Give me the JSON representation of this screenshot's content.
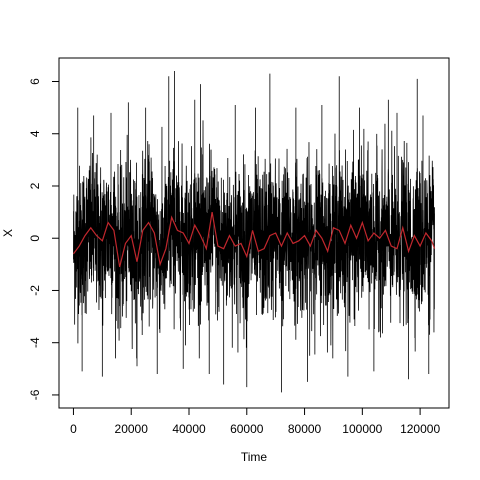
{
  "chart_data": {
    "type": "line",
    "title": "",
    "xlabel": "Time",
    "ylabel": "X",
    "xlim": [
      -5000,
      130000
    ],
    "ylim": [
      -6.5,
      6.9
    ],
    "x_ticks": [
      0,
      20000,
      40000,
      60000,
      80000,
      100000,
      120000
    ],
    "x_tick_labels": [
      "0",
      "20000",
      "40000",
      "60000",
      "80000",
      "100000",
      "120000"
    ],
    "y_ticks": [
      -6,
      -4,
      -2,
      0,
      2,
      4,
      6
    ],
    "y_tick_labels": [
      "-6",
      "-4",
      "-2",
      "0",
      "2",
      "4",
      "6"
    ],
    "grid": false,
    "legend": "none",
    "series": [
      {
        "color": "#000000",
        "x_range": [
          0,
          125000
        ],
        "description_values": {
          "typical_band": [
            -2.5,
            2.5
          ],
          "max": 6.4,
          "min": -5.9
        },
        "spikes": [
          [
            1500,
            5.0
          ],
          [
            3000,
            -5.1
          ],
          [
            7000,
            4.7
          ],
          [
            10000,
            -5.3
          ],
          [
            13000,
            4.8
          ],
          [
            19000,
            5.2
          ],
          [
            22000,
            -4.9
          ],
          [
            25000,
            5.0
          ],
          [
            29000,
            -5.2
          ],
          [
            33000,
            6.2
          ],
          [
            35000,
            6.4
          ],
          [
            38000,
            -5.0
          ],
          [
            42000,
            5.3
          ],
          [
            44000,
            5.9
          ],
          [
            47000,
            -5.2
          ],
          [
            52000,
            -5.6
          ],
          [
            56000,
            5.1
          ],
          [
            60000,
            -5.7
          ],
          [
            63000,
            5.0
          ],
          [
            68000,
            6.3
          ],
          [
            72000,
            -5.9
          ],
          [
            77000,
            5.0
          ],
          [
            81000,
            -5.5
          ],
          [
            86000,
            5.1
          ],
          [
            92000,
            6.2
          ],
          [
            95000,
            -5.3
          ],
          [
            99000,
            5.0
          ],
          [
            104000,
            -5.1
          ],
          [
            109000,
            5.3
          ],
          [
            112000,
            4.8
          ],
          [
            116000,
            -5.4
          ],
          [
            119000,
            6.1
          ],
          [
            121000,
            4.7
          ],
          [
            123000,
            -5.2
          ]
        ]
      },
      {
        "color": "#c1272d",
        "x": [
          0,
          2000,
          4000,
          6000,
          8000,
          10000,
          12000,
          14000,
          16000,
          18000,
          20000,
          22000,
          24000,
          26000,
          28000,
          30000,
          32000,
          34000,
          36000,
          38000,
          40000,
          42000,
          44000,
          46000,
          48000,
          50000,
          52000,
          54000,
          56000,
          58000,
          60000,
          62000,
          64000,
          66000,
          68000,
          70000,
          72000,
          74000,
          76000,
          78000,
          80000,
          82000,
          84000,
          86000,
          88000,
          90000,
          92000,
          94000,
          96000,
          98000,
          100000,
          102000,
          104000,
          106000,
          108000,
          110000,
          112000,
          114000,
          116000,
          118000,
          120000,
          122000,
          124000,
          125000
        ],
        "y": [
          -0.6,
          -0.3,
          0.1,
          0.4,
          0.1,
          -0.1,
          0.6,
          0.3,
          -1.1,
          -0.2,
          0.1,
          -0.9,
          0.3,
          0.6,
          0.2,
          -1.0,
          -0.4,
          0.8,
          0.3,
          0.2,
          -0.2,
          0.5,
          0.1,
          -0.4,
          1.0,
          -0.3,
          -0.4,
          0.1,
          -0.3,
          -0.2,
          -0.7,
          0.3,
          -0.5,
          -0.4,
          0.1,
          0.2,
          -0.3,
          0.2,
          -0.2,
          -0.1,
          0.1,
          -0.3,
          0.3,
          0.0,
          -0.5,
          0.4,
          0.3,
          -0.2,
          0.5,
          0.0,
          0.6,
          -0.1,
          0.2,
          0.0,
          0.3,
          -0.3,
          -0.4,
          0.4,
          -0.5,
          0.1,
          -0.3,
          0.2,
          -0.1,
          -0.4
        ]
      }
    ]
  }
}
